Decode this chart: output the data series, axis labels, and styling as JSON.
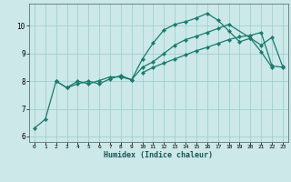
{
  "xlabel": "Humidex (Indice chaleur)",
  "bg_color": "#cce8e8",
  "line_color": "#1a7a6e",
  "grid_color": "#99cccc",
  "xlim": [
    -0.5,
    23.5
  ],
  "ylim": [
    5.8,
    10.8
  ],
  "xticks": [
    0,
    1,
    2,
    3,
    4,
    5,
    6,
    7,
    8,
    9,
    10,
    11,
    12,
    13,
    14,
    15,
    16,
    17,
    18,
    19,
    20,
    21,
    22,
    23
  ],
  "yticks": [
    6,
    7,
    8,
    9,
    10
  ],
  "line1_x": [
    0,
    1,
    2,
    3,
    4,
    5,
    6,
    7,
    8,
    9,
    10,
    11,
    12,
    13,
    14,
    15,
    16,
    17,
    18,
    19,
    20,
    21,
    22
  ],
  "line1_y": [
    6.3,
    6.62,
    8.0,
    7.76,
    8.0,
    7.9,
    8.02,
    8.15,
    8.15,
    8.05,
    8.8,
    9.38,
    9.85,
    10.05,
    10.15,
    10.28,
    10.45,
    10.2,
    9.82,
    9.42,
    9.55,
    9.06,
    8.5
  ],
  "line2_x": [
    2,
    3,
    4,
    5,
    6,
    7,
    8,
    9,
    10,
    11,
    12,
    13,
    14,
    15,
    16,
    17,
    18,
    20,
    21,
    22,
    23
  ],
  "line2_y": [
    8.0,
    7.76,
    7.9,
    8.0,
    7.9,
    8.08,
    8.2,
    8.05,
    8.5,
    8.7,
    9.0,
    9.3,
    9.5,
    9.62,
    9.76,
    9.9,
    10.05,
    9.56,
    9.3,
    9.58,
    8.52
  ],
  "line3_x": [
    10,
    11,
    12,
    13,
    14,
    15,
    16,
    17,
    18,
    19,
    20,
    21,
    22,
    23
  ],
  "line3_y": [
    8.3,
    8.5,
    8.65,
    8.8,
    8.95,
    9.1,
    9.22,
    9.36,
    9.5,
    9.6,
    9.65,
    9.76,
    8.55,
    8.5
  ]
}
